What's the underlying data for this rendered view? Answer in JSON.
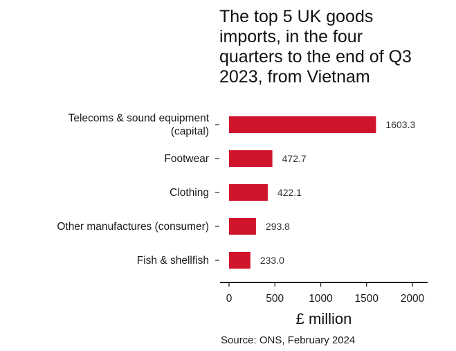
{
  "chart_data": {
    "type": "bar",
    "orientation": "horizontal",
    "title_lines": [
      "The top 5 UK goods",
      "imports, in the four",
      "quarters to the end of Q3",
      "2023, from Vietnam"
    ],
    "categories": [
      [
        "Telecoms & sound equipment",
        "(capital)"
      ],
      [
        "Footwear"
      ],
      [
        "Clothing"
      ],
      [
        "Other manufactures (consumer)"
      ],
      [
        "Fish & shellfish"
      ]
    ],
    "values": [
      1603.3,
      472.7,
      422.1,
      293.8,
      233.0
    ],
    "value_labels": [
      "1603.3",
      "472.7",
      "422.1",
      "293.8",
      "233.0"
    ],
    "xlabel": "£ million",
    "ylabel": "",
    "xlim": [
      0,
      2000
    ],
    "xticks": [
      0,
      500,
      1000,
      1500,
      2000
    ],
    "bar_color": "#d0142c",
    "grid": false,
    "source": "Source: ONS, February 2024"
  }
}
